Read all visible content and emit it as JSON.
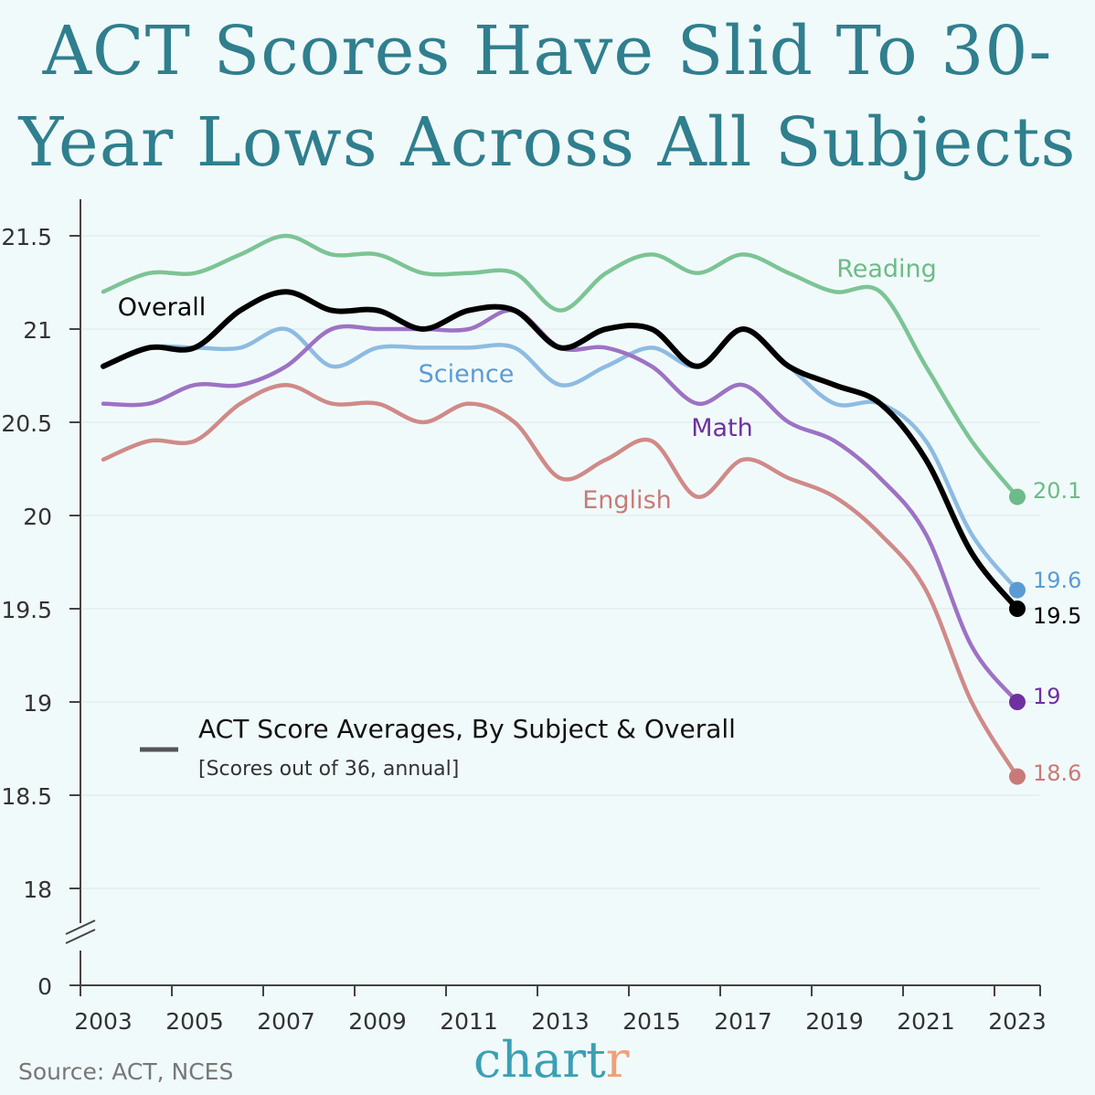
{
  "title": "ACT Scores Have Slid To 30-Year Lows Across All Subjects",
  "source": "Source: ACT, NCES",
  "logo": {
    "main": "chart",
    "accent": "r"
  },
  "chart_data": {
    "type": "line",
    "title": "ACT Score Averages, By Subject & Overall",
    "subtitle": "[Scores out of 36, annual]",
    "x": [
      2003,
      2004,
      2005,
      2006,
      2007,
      2008,
      2009,
      2010,
      2011,
      2012,
      2013,
      2014,
      2015,
      2016,
      2017,
      2018,
      2019,
      2020,
      2021,
      2022,
      2023
    ],
    "xticks": [
      "2003",
      "2005",
      "2007",
      "2009",
      "2011",
      "2013",
      "2015",
      "2017",
      "2019",
      "2021",
      "2023"
    ],
    "yticks": [
      "21.5",
      "21",
      "20.5",
      "20",
      "19.5",
      "19",
      "18.5",
      "18",
      "0"
    ],
    "ylim": [
      18,
      21.6
    ],
    "y_axis_break": true,
    "grid": "horizontal",
    "series": [
      {
        "name": "Reading",
        "color": "#7cc495",
        "dot": "#6dbb88",
        "end_label": "20.1",
        "values": [
          21.2,
          21.3,
          21.3,
          21.4,
          21.5,
          21.4,
          21.4,
          21.3,
          21.3,
          21.3,
          21.1,
          21.3,
          21.4,
          21.3,
          21.4,
          21.3,
          21.2,
          21.2,
          20.8,
          20.4,
          20.1
        ]
      },
      {
        "name": "Science",
        "color": "#8dbbe2",
        "dot": "#5b9bd5",
        "end_label": "19.6",
        "values": [
          20.8,
          20.9,
          20.9,
          20.9,
          21.0,
          20.8,
          20.9,
          20.9,
          20.9,
          20.9,
          20.7,
          20.8,
          20.9,
          20.8,
          21.0,
          20.8,
          20.6,
          20.6,
          20.4,
          19.9,
          19.6
        ]
      },
      {
        "name": "Math",
        "color": "#9d72c4",
        "dot": "#7030a0",
        "end_label": "19",
        "values": [
          20.6,
          20.6,
          20.7,
          20.7,
          20.8,
          21.0,
          21.0,
          21.0,
          21.0,
          21.1,
          20.9,
          20.9,
          20.8,
          20.6,
          20.7,
          20.5,
          20.4,
          20.2,
          19.9,
          19.3,
          19.0
        ]
      },
      {
        "name": "English",
        "color": "#d08a88",
        "dot": "#c97a78",
        "end_label": "18.6",
        "values": [
          20.3,
          20.4,
          20.4,
          20.6,
          20.7,
          20.6,
          20.6,
          20.5,
          20.6,
          20.5,
          20.2,
          20.3,
          20.4,
          20.1,
          20.3,
          20.2,
          20.1,
          19.9,
          19.6,
          19.0,
          18.6
        ]
      },
      {
        "name": "Overall",
        "color": "#000000",
        "dot": "#000000",
        "end_label": "19.5",
        "values": [
          20.8,
          20.9,
          20.9,
          21.1,
          21.2,
          21.1,
          21.1,
          21.0,
          21.1,
          21.1,
          20.9,
          21.0,
          21.0,
          20.8,
          21.0,
          20.8,
          20.7,
          20.6,
          20.3,
          19.8,
          19.5
        ]
      }
    ]
  }
}
